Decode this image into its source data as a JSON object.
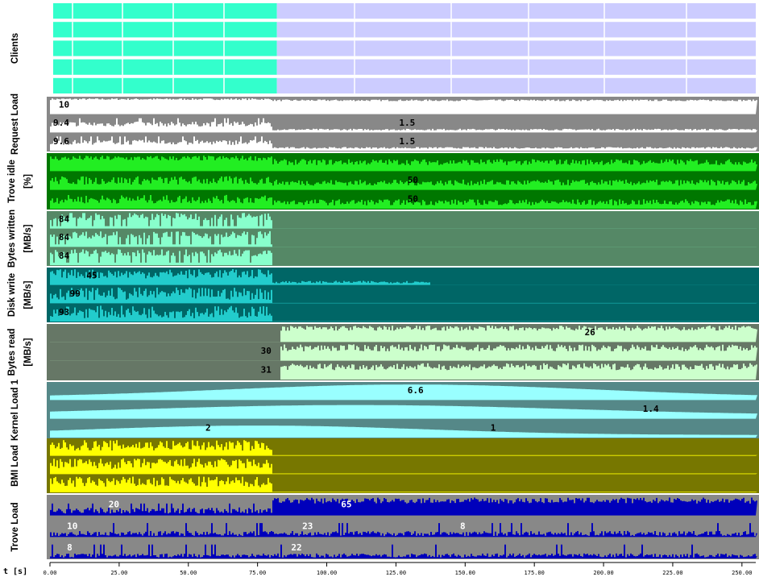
{
  "chart_data": {
    "type": "area",
    "xlabel": "t [s]",
    "xlim": [
      0,
      255
    ],
    "x_ticks": [
      "0.00",
      "25.00",
      "50.00",
      "75.00",
      "100.00",
      "125.00",
      "150.00",
      "175.00",
      "200.00",
      "225.00",
      "250.00"
    ],
    "phase_switch_t": 80,
    "lanes": [
      {
        "id": "clients",
        "label": "Clients",
        "sub": "",
        "kind": "clients",
        "bg": "#ffffff",
        "fill_write": "#33ffcc",
        "fill_read": "#ccccff",
        "rows": 5
      },
      {
        "id": "request",
        "label": "Request Load",
        "sub": "",
        "kind": "series",
        "bg": "#888888",
        "fill": "#ffffff",
        "label_color": "#000000",
        "series": [
          {
            "value": "10",
            "t": 2
          },
          {
            "value": "9.4",
            "t": 0,
            "value2": "1.5",
            "t2": 125
          },
          {
            "value": "9.6",
            "t": 0,
            "value2": "1.5",
            "t2": 125
          }
        ]
      },
      {
        "id": "troveidle",
        "label": "Trove idle",
        "sub": "[%]",
        "kind": "series",
        "bg": "#007700",
        "fill": "#22ee22",
        "label_color": "#000000",
        "series": [
          {
            "value": "",
            "t": 0
          },
          {
            "value": "50",
            "t": 128
          },
          {
            "value": "50",
            "t": 128
          }
        ]
      },
      {
        "id": "byteswritten",
        "label": "Bytes written",
        "sub": "[MB/s]",
        "kind": "series",
        "bg": "#558866",
        "fill": "#88ffcc",
        "label_color": "#000000",
        "series": [
          {
            "value": "84",
            "t": 2
          },
          {
            "value": "84",
            "t": 2
          },
          {
            "value": "84",
            "t": 2
          }
        ]
      },
      {
        "id": "diskwrite",
        "label": "Disk write",
        "sub": "[MB/s]",
        "kind": "series",
        "bg": "#006666",
        "fill": "#22cccc",
        "label_color": "#000000",
        "series": [
          {
            "value": "45",
            "t": 12
          },
          {
            "value": "99",
            "t": 6
          },
          {
            "value": "93",
            "t": 2
          }
        ]
      },
      {
        "id": "bytesread",
        "label": "Bytes read",
        "sub": "[MB/s]",
        "kind": "series",
        "bg": "#667766",
        "fill": "#ccffcc",
        "label_color": "#000000",
        "series": [
          {
            "value": "26",
            "t": 192
          },
          {
            "value": "30",
            "t": 75
          },
          {
            "value": "31",
            "t": 75
          }
        ]
      },
      {
        "id": "kernel",
        "label": "Kernel Load 1",
        "sub": "",
        "kind": "series",
        "bg": "#558888",
        "fill": "#99ffff",
        "label_color": "#000000",
        "series": [
          {
            "value": "6.6",
            "t": 128
          },
          {
            "value": "1.4",
            "t": 213
          },
          {
            "value": "2",
            "t": 55,
            "value2": "1",
            "t2": 158
          }
        ]
      },
      {
        "id": "bmi",
        "label": "BMI Load",
        "sub": "",
        "kind": "series",
        "bg": "#777700",
        "fill": "#ffff00",
        "label_color": "#000000",
        "series": [
          {
            "value": "",
            "t": 0
          },
          {
            "value": "",
            "t": 0
          },
          {
            "value": "",
            "t": 0
          }
        ]
      },
      {
        "id": "trove",
        "label": "Trove Load",
        "sub": "",
        "kind": "series",
        "bg": "#888888",
        "fill": "#0000bb",
        "label_color": "#ffffff",
        "series": [
          {
            "value": "20",
            "t": 20,
            "value2": "65",
            "t2": 104
          },
          {
            "value": "10",
            "t": 5,
            "value2": "23",
            "t2": 90,
            "value3": "8",
            "t3": 147
          },
          {
            "value": "8",
            "t": 5,
            "value2": "22",
            "t2": 86
          }
        ]
      }
    ],
    "grid": false,
    "legend": "none"
  }
}
